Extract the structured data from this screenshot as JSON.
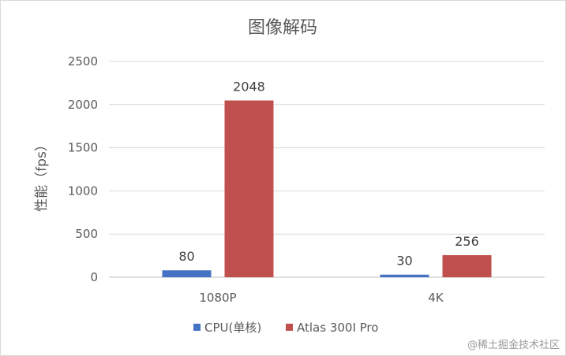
{
  "chart_data": {
    "type": "bar",
    "title": "图像解码",
    "ylabel": "性能（fps）",
    "xlabel": "",
    "categories": [
      "1080P",
      "4K"
    ],
    "ylim": [
      0,
      2500
    ],
    "yticks": [
      0,
      500,
      1000,
      1500,
      2000,
      2500
    ],
    "grid": true,
    "legend_position": "bottom",
    "series": [
      {
        "name": "CPU(单核)",
        "values": [
          80,
          30
        ],
        "color": "#4472C4"
      },
      {
        "name": "Atlas 300I Pro",
        "values": [
          2048,
          256
        ],
        "color": "#C0504D"
      }
    ]
  },
  "watermark": "@稀土掘金技术社区"
}
